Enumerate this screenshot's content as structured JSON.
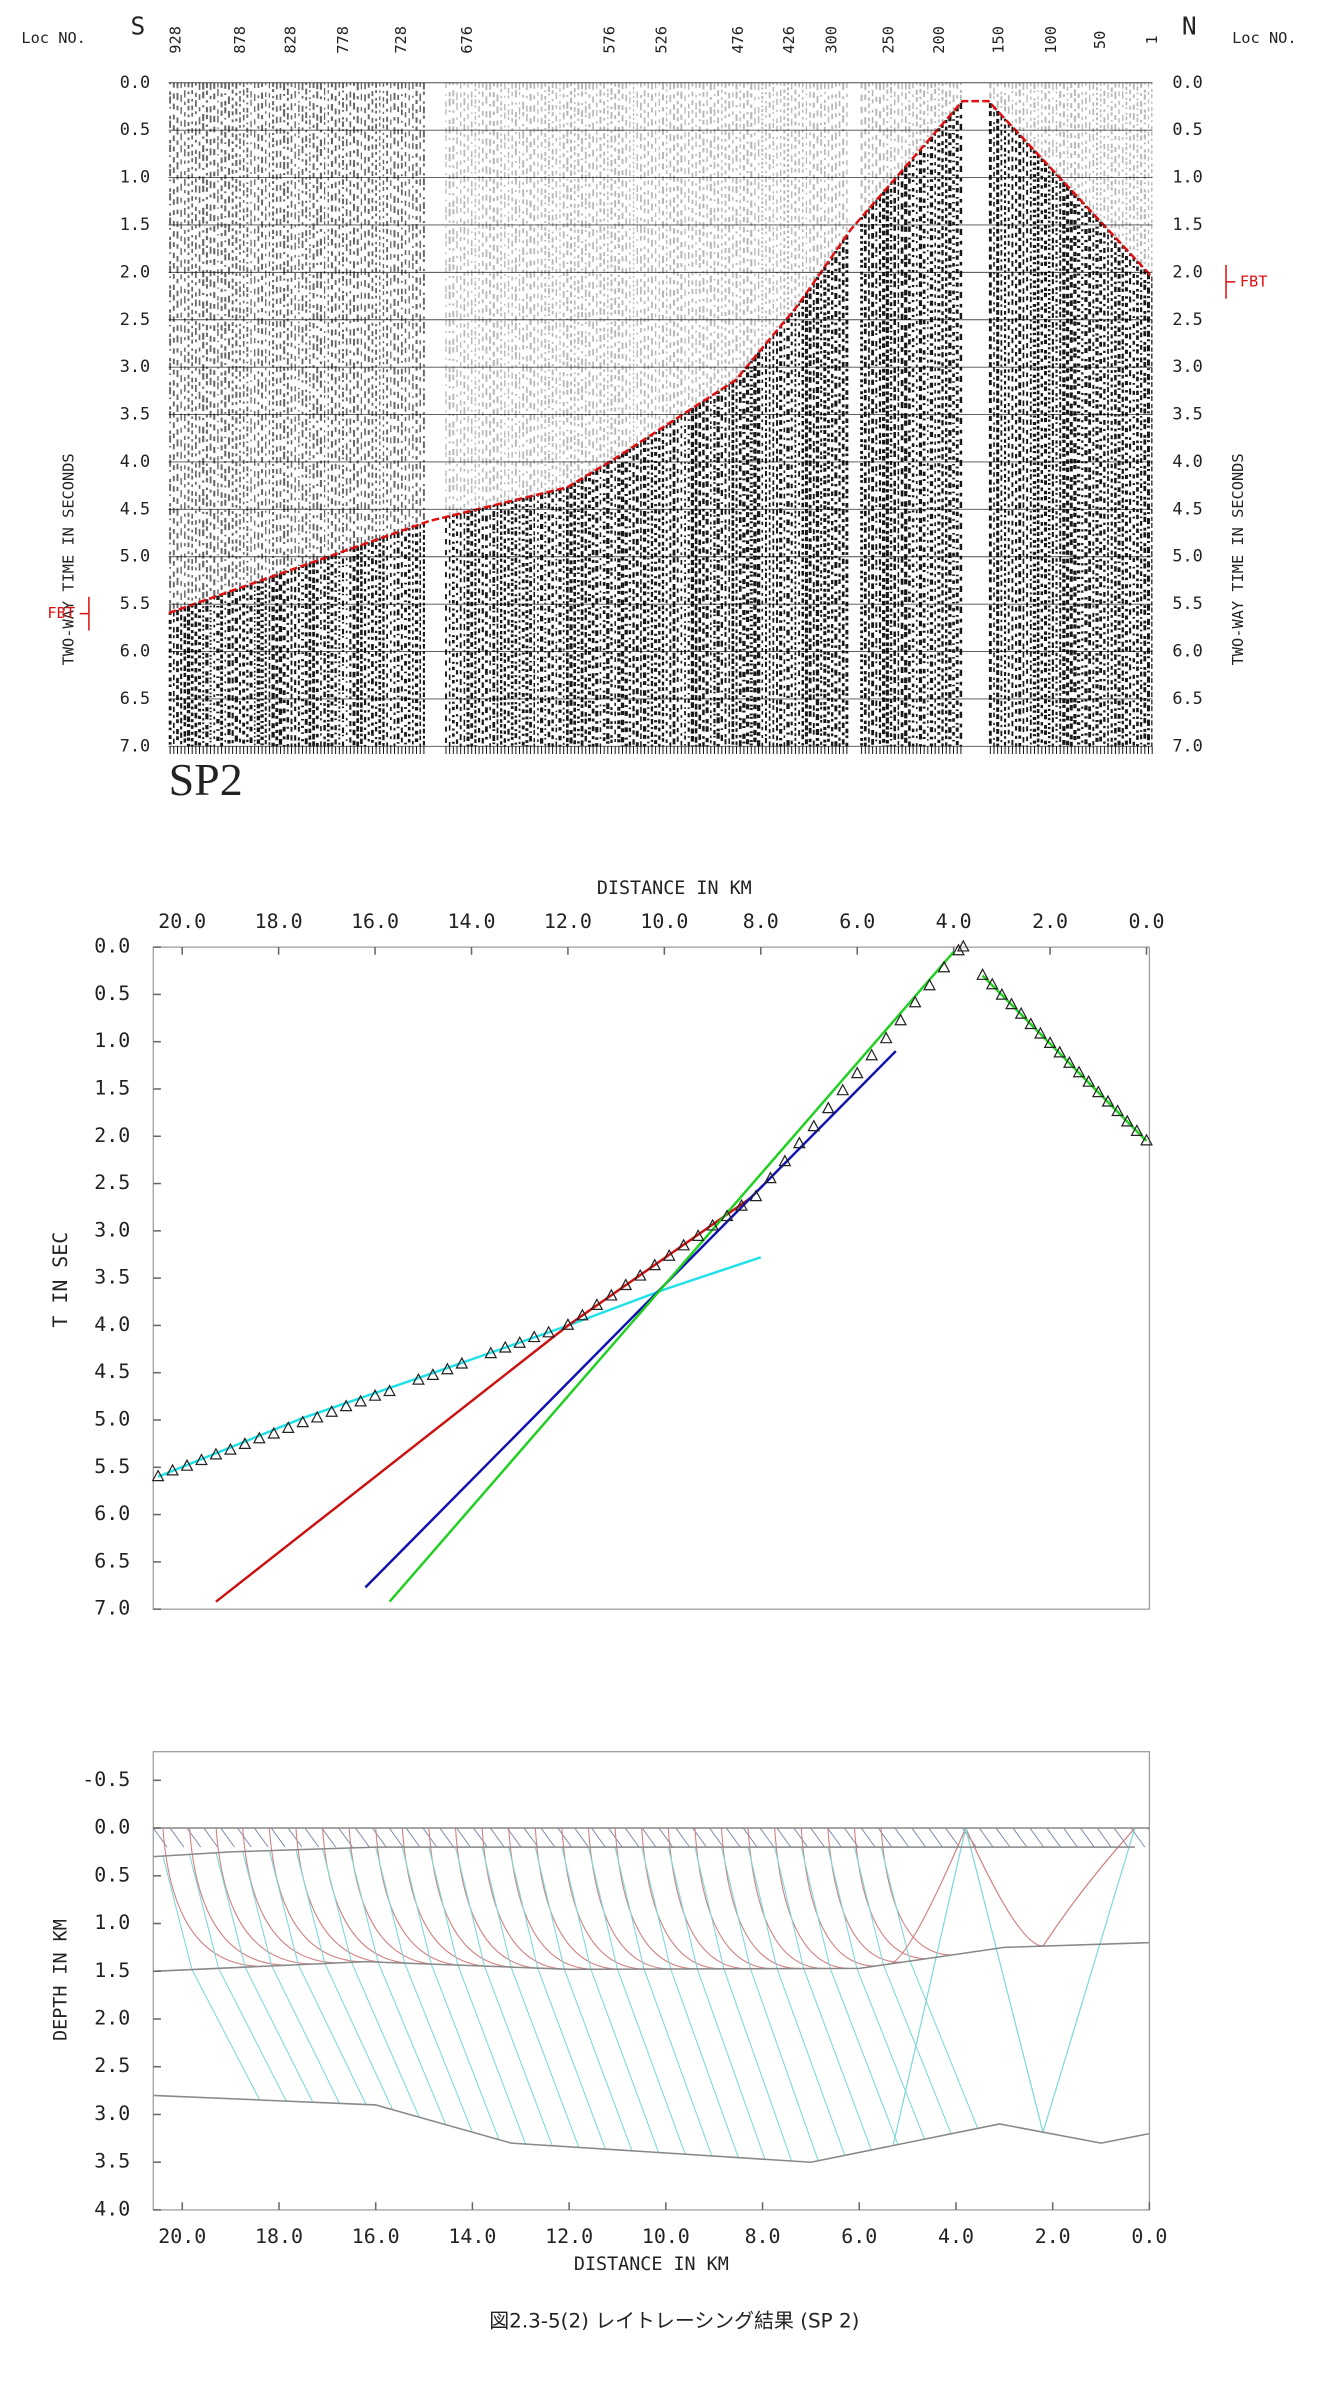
{
  "chart_data": [
    {
      "type": "seismic",
      "left_label": "Loc NO.",
      "right_label": "Loc NO.",
      "left_end": "S",
      "right_end": "N",
      "loc_labels": [
        "928",
        "878",
        "828",
        "778",
        "728",
        "676",
        "576",
        "526",
        "476",
        "426",
        "300",
        "250",
        "200",
        "150",
        "100",
        "50",
        "1"
      ],
      "ylabel": "TWO-WAY TIME IN SECONDS",
      "ylim": [
        0,
        7
      ],
      "yticks": [
        {
          "value": 0,
          "label": "0.0"
        },
        {
          "value": 0.5,
          "label": "0.5"
        },
        {
          "value": 1,
          "label": "1.0"
        },
        {
          "value": 1.5,
          "label": "1.5"
        },
        {
          "value": 2,
          "label": "2.0"
        },
        {
          "value": 2.5,
          "label": "2.5"
        },
        {
          "value": 3,
          "label": "3.0"
        },
        {
          "value": 3.5,
          "label": "3.5"
        },
        {
          "value": 4,
          "label": "4.0"
        },
        {
          "value": 4.5,
          "label": "4.5"
        },
        {
          "value": 5,
          "label": "5.0"
        },
        {
          "value": 5.5,
          "label": "5.5"
        },
        {
          "value": 6,
          "label": "6.0"
        },
        {
          "value": 6.5,
          "label": "6.5"
        },
        {
          "value": 7,
          "label": "7.0"
        }
      ],
      "pick_label": "FBT",
      "pick_times": [
        5.6,
        2.1
      ],
      "panel_label": "SP2"
    },
    {
      "type": "line",
      "xlabel": "DISTANCE IN KM",
      "ylabel": "T IN SEC",
      "xlim": [
        20.6,
        -0.06
      ],
      "ylim": [
        0,
        7
      ],
      "xticks": [
        {
          "value": 20,
          "label": "20.0"
        },
        {
          "value": 18,
          "label": "18.0"
        },
        {
          "value": 16,
          "label": "16.0"
        },
        {
          "value": 14,
          "label": "14.0"
        },
        {
          "value": 12,
          "label": "12.0"
        },
        {
          "value": 10,
          "label": "10.0"
        },
        {
          "value": 8,
          "label": "8.0"
        },
        {
          "value": 6,
          "label": "6.0"
        },
        {
          "value": 4,
          "label": "4.0"
        },
        {
          "value": 2,
          "label": "2.0"
        },
        {
          "value": 0,
          "label": "0.0"
        }
      ],
      "yticks": [
        {
          "value": 0,
          "label": "0.0"
        },
        {
          "value": 0.5,
          "label": "0.5"
        },
        {
          "value": 1,
          "label": "1.0"
        },
        {
          "value": 1.5,
          "label": "1.5"
        },
        {
          "value": 2,
          "label": "2.0"
        },
        {
          "value": 2.5,
          "label": "2.5"
        },
        {
          "value": 3,
          "label": "3.0"
        },
        {
          "value": 3.5,
          "label": "3.5"
        },
        {
          "value": 4,
          "label": "4.0"
        },
        {
          "value": 4.5,
          "label": "4.5"
        },
        {
          "value": 5,
          "label": "5.0"
        },
        {
          "value": 5.5,
          "label": "5.5"
        },
        {
          "value": 6,
          "label": "6.0"
        },
        {
          "value": 6.5,
          "label": "6.5"
        },
        {
          "value": 7,
          "label": "7.0"
        }
      ],
      "series": [
        {
          "color": "#20e0e8",
          "x": [
            20.5,
            17.5,
            14.5,
            12.0,
            10.0,
            8.0
          ],
          "values": [
            5.6,
            4.98,
            4.45,
            4.0,
            3.62,
            3.28
          ]
        },
        {
          "color": "#cc1111",
          "x": [
            19.3,
            12.0,
            8.2
          ],
          "values": [
            6.92,
            4.0,
            2.65
          ]
        },
        {
          "color": "#1010b0",
          "x": [
            16.2,
            5.2
          ],
          "values": [
            6.77,
            1.1
          ]
        },
        {
          "color": "#20d020",
          "x": [
            15.7,
            4.0
          ],
          "values": [
            6.92,
            0.05
          ]
        },
        {
          "color": "#20d020",
          "x": [
            3.4,
            0.0
          ],
          "values": [
            0.3,
            2.05
          ]
        }
      ],
      "points": {
        "x": [
          20.5,
          20.2,
          19.9,
          19.6,
          19.3,
          19.0,
          18.7,
          18.4,
          18.1,
          17.8,
          17.5,
          17.2,
          16.9,
          16.6,
          16.3,
          16.0,
          15.7,
          15.1,
          14.8,
          14.5,
          14.2,
          13.6,
          13.3,
          13.0,
          12.7,
          12.4,
          12.0,
          11.7,
          11.4,
          11.1,
          10.8,
          10.5,
          10.2,
          9.9,
          9.6,
          9.3,
          9.0,
          8.7,
          8.4,
          8.1,
          7.8,
          7.5,
          7.2,
          6.9,
          6.6,
          6.3,
          6.0,
          5.7,
          5.4,
          5.1,
          4.8,
          4.5,
          4.2,
          3.9,
          3.8,
          3.4,
          3.2,
          3.0,
          2.8,
          2.6,
          2.4,
          2.2,
          2.0,
          1.8,
          1.6,
          1.4,
          1.2,
          1.0,
          0.8,
          0.6,
          0.4,
          0.2,
          0.0
        ],
        "values": [
          5.6,
          5.54,
          5.49,
          5.43,
          5.37,
          5.32,
          5.26,
          5.2,
          5.15,
          5.09,
          5.03,
          4.98,
          4.92,
          4.86,
          4.81,
          4.75,
          4.7,
          4.58,
          4.53,
          4.47,
          4.41,
          4.3,
          4.24,
          4.19,
          4.13,
          4.08,
          4.0,
          3.9,
          3.79,
          3.69,
          3.58,
          3.48,
          3.37,
          3.27,
          3.16,
          3.06,
          2.95,
          2.85,
          2.74,
          2.64,
          2.45,
          2.27,
          2.08,
          1.9,
          1.71,
          1.52,
          1.34,
          1.15,
          0.97,
          0.78,
          0.59,
          0.41,
          0.22,
          0.04,
          0.0,
          0.3,
          0.4,
          0.51,
          0.61,
          0.71,
          0.82,
          0.92,
          1.02,
          1.12,
          1.23,
          1.33,
          1.43,
          1.54,
          1.64,
          1.74,
          1.85,
          1.95,
          2.05
        ]
      }
    },
    {
      "type": "model",
      "xlabel": "DISTANCE IN KM",
      "ylabel": "DEPTH IN KM",
      "xlim": [
        20.6,
        0
      ],
      "ylim": [
        -0.8,
        4
      ],
      "xticks": [
        {
          "value": 20,
          "label": "20.0"
        },
        {
          "value": 18,
          "label": "18.0"
        },
        {
          "value": 16,
          "label": "16.0"
        },
        {
          "value": 14,
          "label": "14.0"
        },
        {
          "value": 12,
          "label": "12.0"
        },
        {
          "value": 10,
          "label": "10.0"
        },
        {
          "value": 8,
          "label": "8.0"
        },
        {
          "value": 6,
          "label": "6.0"
        },
        {
          "value": 4,
          "label": "4.0"
        },
        {
          "value": 2,
          "label": "2.0"
        },
        {
          "value": 0,
          "label": "0.0"
        }
      ],
      "yticks": [
        {
          "value": -0.5,
          "label": "-0.5"
        },
        {
          "value": 0,
          "label": "0.0"
        },
        {
          "value": 0.5,
          "label": "0.5"
        },
        {
          "value": 1,
          "label": "1.0"
        },
        {
          "value": 1.5,
          "label": "1.5"
        },
        {
          "value": 2,
          "label": "2.0"
        },
        {
          "value": 2.5,
          "label": "2.5"
        },
        {
          "value": 3,
          "label": "3.0"
        },
        {
          "value": 3.5,
          "label": "3.5"
        },
        {
          "value": 4,
          "label": "4.0"
        }
      ],
      "boundaries": [
        {
          "color": "#888888",
          "x": [
            20.6,
            0
          ],
          "values": [
            0,
            0
          ]
        },
        {
          "color": "#888888",
          "x": [
            20.6,
            19.0,
            16.0,
            0.3
          ],
          "values": [
            0.3,
            0.25,
            0.2,
            0.2
          ]
        },
        {
          "color": "#888888",
          "x": [
            20.6,
            16.2,
            12.0,
            6.0,
            3.0,
            0
          ],
          "values": [
            1.5,
            1.4,
            1.48,
            1.47,
            1.25,
            1.2
          ]
        },
        {
          "color": "#888888",
          "x": [
            20.6,
            16.0,
            13.2,
            7.0,
            3.1,
            1.0,
            0
          ],
          "values": [
            2.8,
            2.9,
            3.3,
            3.5,
            3.1,
            3.3,
            3.2
          ]
        }
      ],
      "shot_x": 3.8
    }
  ],
  "caption": "図2.3-5(2) レイトレーシング結果 (SP 2)"
}
